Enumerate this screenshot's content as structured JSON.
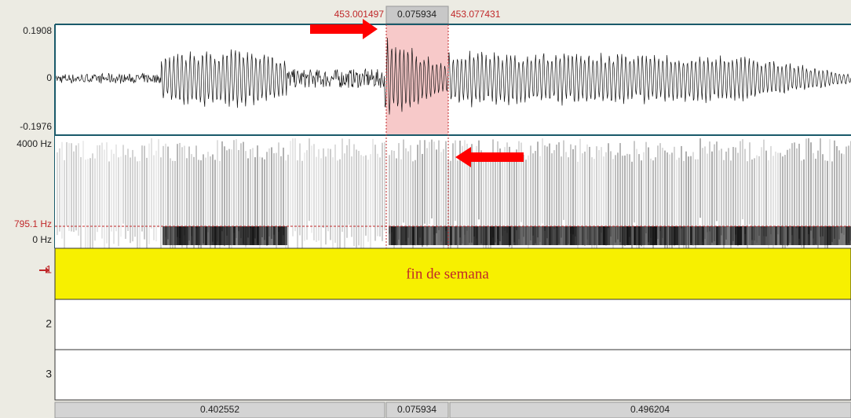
{
  "selection": {
    "start": "453.001497",
    "duration": "0.075934",
    "end": "453.077431"
  },
  "waveform": {
    "max_label": "0.1908",
    "zero_label": "0",
    "min_label": "-0.1976"
  },
  "spectrogram": {
    "top_label": "4000 Hz",
    "cursor_label": "795.1 Hz",
    "bottom_label": "0 Hz"
  },
  "tiers": [
    {
      "number": "1",
      "text": "fin de semana"
    },
    {
      "number": "2"
    },
    {
      "number": "3"
    }
  ],
  "bottom_bar": [
    "0.402552",
    "0.075934",
    "0.496204"
  ]
}
